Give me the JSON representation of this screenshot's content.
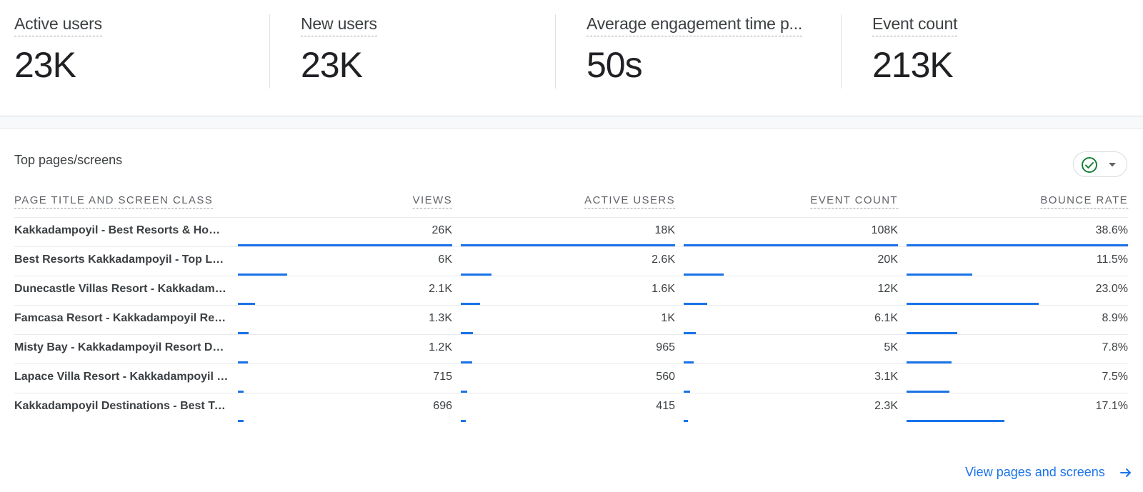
{
  "metrics": [
    {
      "label": "Active users",
      "value": "23K"
    },
    {
      "label": "New users",
      "value": "23K"
    },
    {
      "label": "Average engagement time p...",
      "value": "50s"
    },
    {
      "label": "Event count",
      "value": "213K"
    }
  ],
  "card": {
    "title": "Top pages/screens",
    "compare_icon": "check-circle-icon",
    "dropdown_icon": "caret-down-icon",
    "columns": [
      "PAGE TITLE AND SCREEN CLASS",
      "VIEWS",
      "ACTIVE USERS",
      "EVENT COUNT",
      "BOUNCE RATE"
    ],
    "rows": [
      {
        "title": "Kakkadampoyil - Best Resorts & Homestays in Kakkadampoyil",
        "views": "26K",
        "active_users": "18K",
        "event_count": "108K",
        "bounce_rate": "38.6%",
        "views_n": 26000,
        "users_n": 18000,
        "events_n": 108000,
        "bounce_n": 38.6
      },
      {
        "title": "Best Resorts Kakkadampoyil - Top Luxury Stays",
        "views": "6K",
        "active_users": "2.6K",
        "event_count": "20K",
        "bounce_rate": "11.5%",
        "views_n": 6000,
        "users_n": 2600,
        "events_n": 20000,
        "bounce_n": 11.5
      },
      {
        "title": "Dunecastle Villas Resort - Kakkadampoyil",
        "views": "2.1K",
        "active_users": "1.6K",
        "event_count": "12K",
        "bounce_rate": "23.0%",
        "views_n": 2100,
        "users_n": 1600,
        "events_n": 12000,
        "bounce_n": 23.0
      },
      {
        "title": "Famcasa Resort - Kakkadampoyil Resorts",
        "views": "1.3K",
        "active_users": "1K",
        "event_count": "6.1K",
        "bounce_rate": "8.9%",
        "views_n": 1300,
        "users_n": 1000,
        "events_n": 6100,
        "bounce_n": 8.9
      },
      {
        "title": "Misty Bay - Kakkadampoyil Resort Details",
        "views": "1.2K",
        "active_users": "965",
        "event_count": "5K",
        "bounce_rate": "7.8%",
        "views_n": 1200,
        "users_n": 965,
        "events_n": 5000,
        "bounce_n": 7.8
      },
      {
        "title": "Lapace Villa Resort - Kakkadampoyil Resorts",
        "views": "715",
        "active_users": "560",
        "event_count": "3.1K",
        "bounce_rate": "7.5%",
        "views_n": 715,
        "users_n": 560,
        "events_n": 3100,
        "bounce_n": 7.5
      },
      {
        "title": "Kakkadampoyil Destinations - Best Tourist Places",
        "views": "696",
        "active_users": "415",
        "event_count": "2.3K",
        "bounce_rate": "17.1%",
        "views_n": 696,
        "users_n": 415,
        "events_n": 2300,
        "bounce_n": 17.1
      }
    ],
    "view_link": "View pages and screens",
    "view_link_icon": "arrow-right-icon"
  },
  "colors": {
    "accent": "#1a73e8",
    "check": "#188038"
  }
}
